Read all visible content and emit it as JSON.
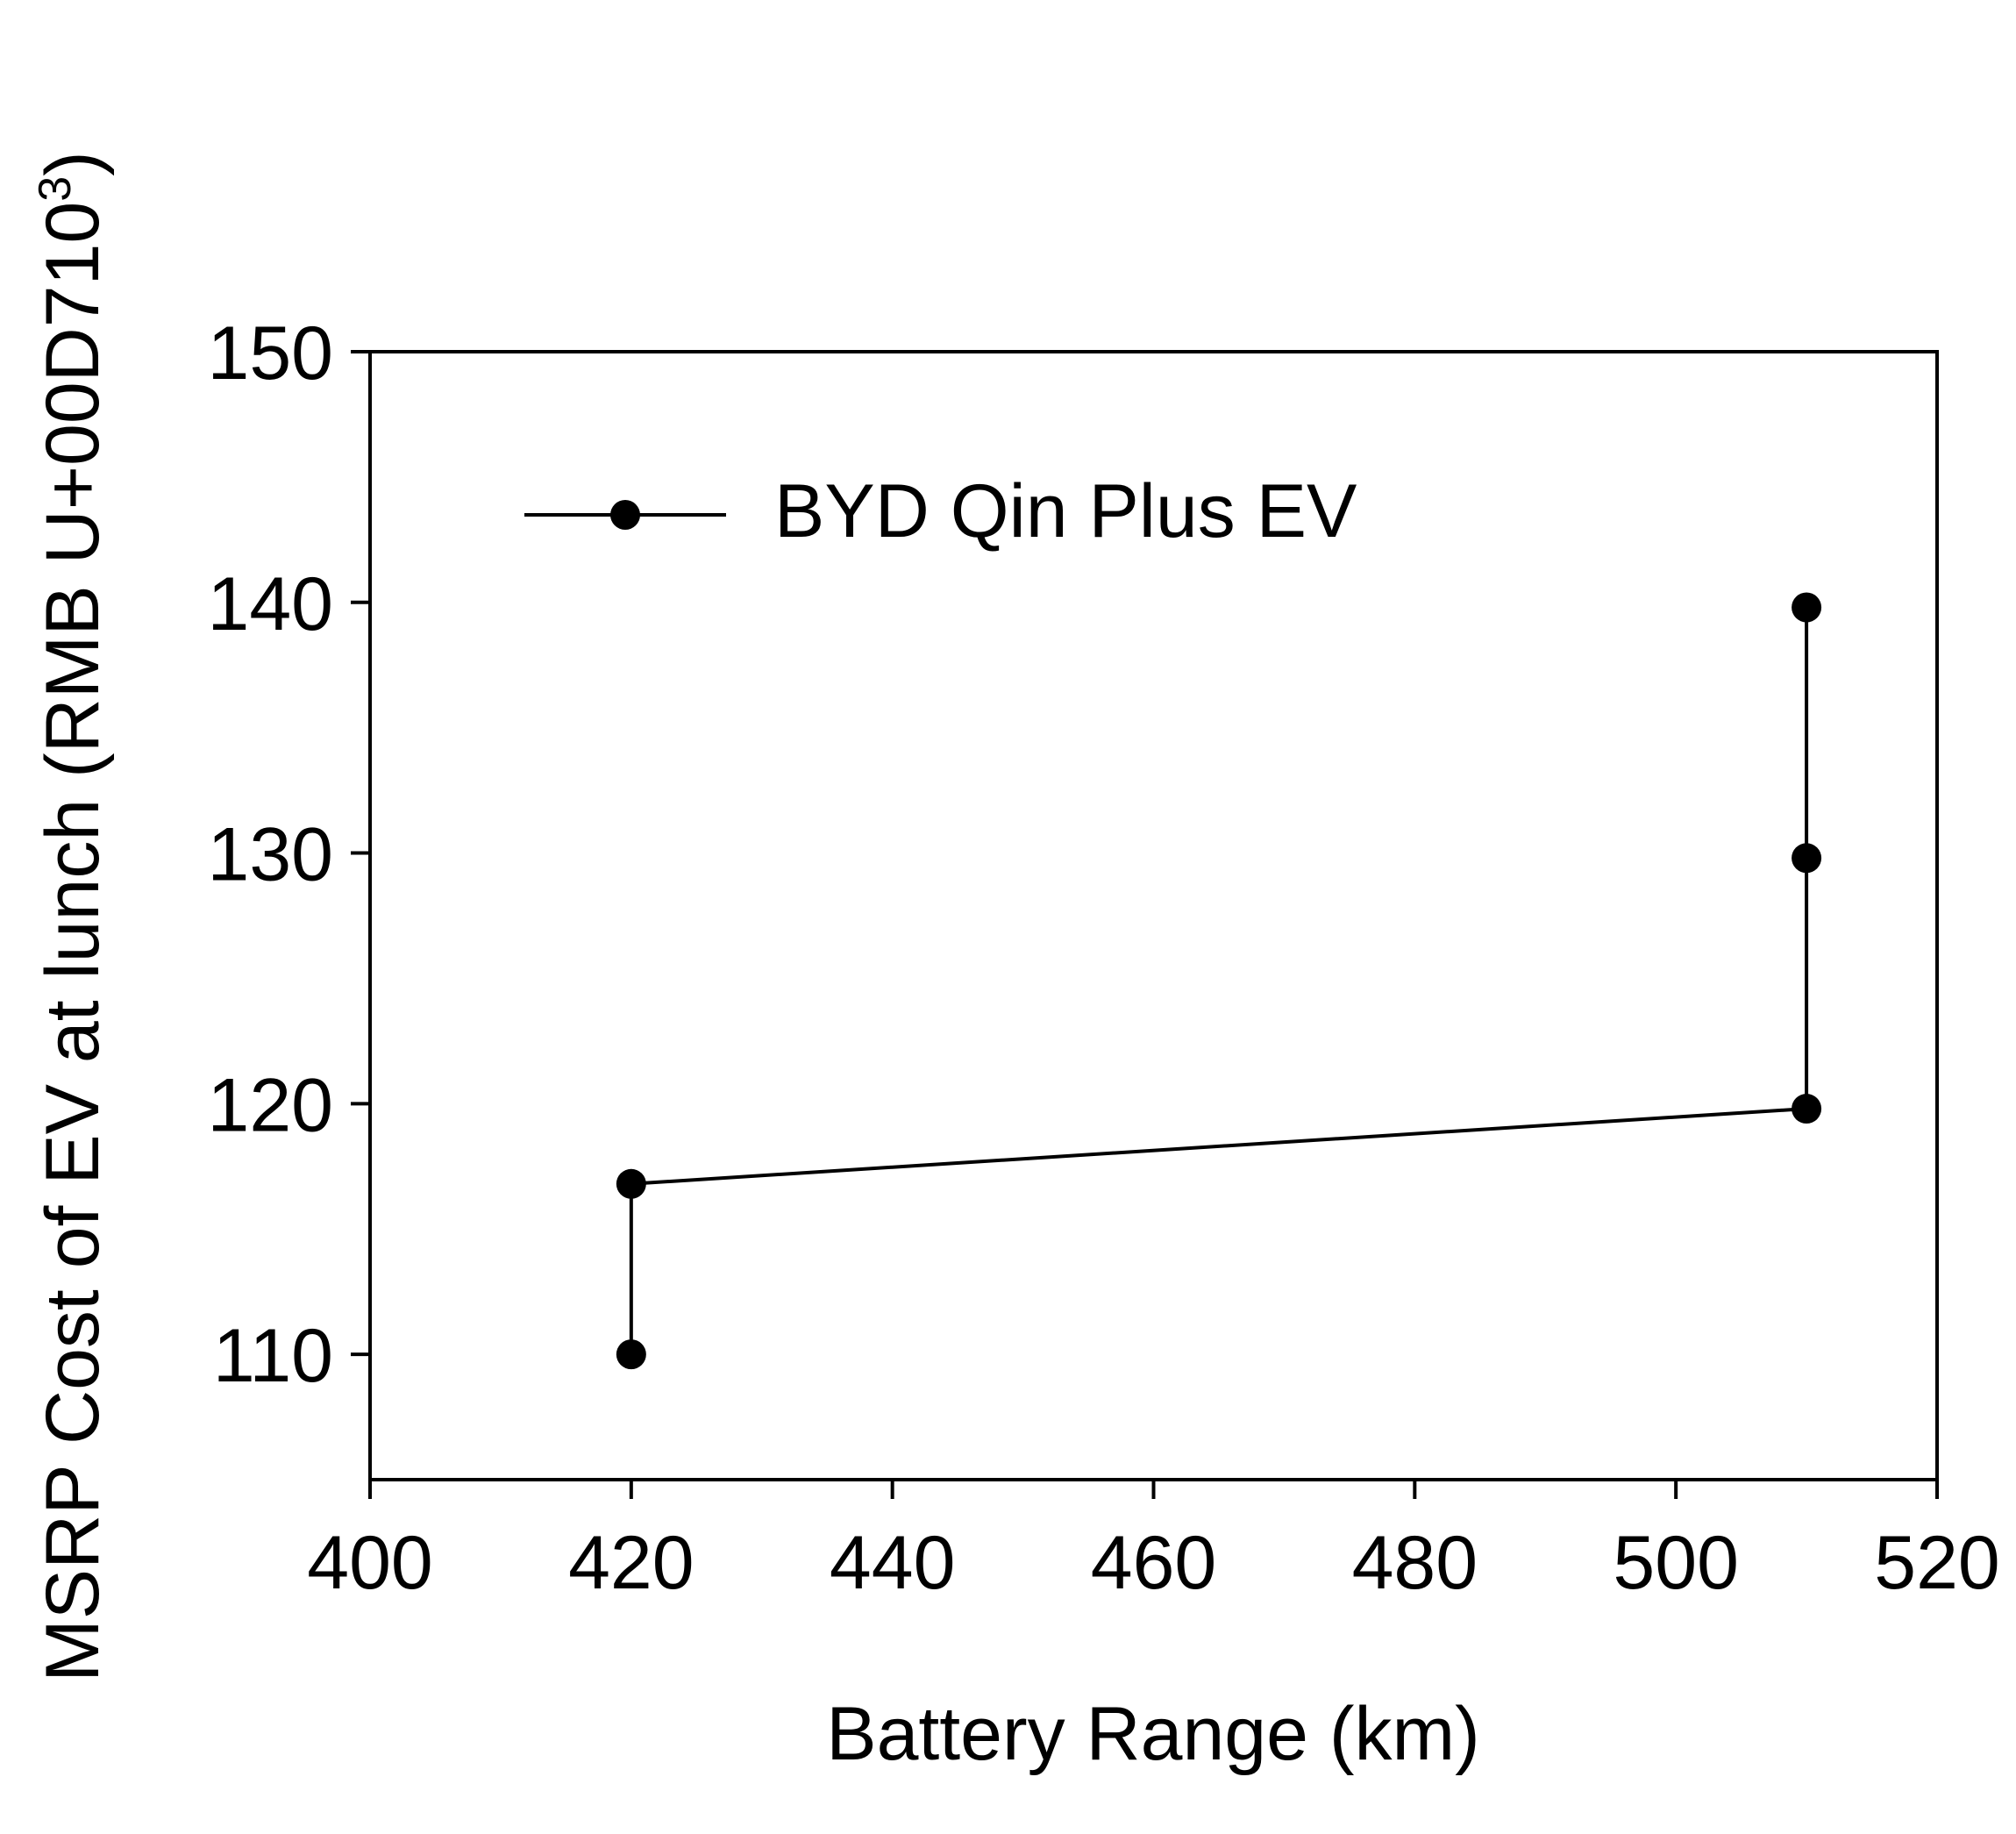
{
  "chart_data": {
    "type": "line",
    "title": "",
    "xlabel": "Battery Range (km)",
    "ylabel": "MSRP Cost of EV at lunch (RMB U+00D710",
    "ylabel_superscript": "3",
    "ylabel_close": ")",
    "xlim": [
      400,
      520
    ],
    "ylim": [
      105,
      150
    ],
    "xticks": [
      400,
      420,
      440,
      460,
      480,
      500,
      520
    ],
    "yticks": [
      110,
      120,
      130,
      140,
      150
    ],
    "legend_position": "top-left",
    "grid": false,
    "series": [
      {
        "name": "BYD Qin Plus EV",
        "color": "#000000",
        "marker": "circle",
        "x": [
          420,
          420,
          510,
          510,
          510
        ],
        "y": [
          110,
          116.8,
          119.8,
          129.8,
          139.8
        ]
      }
    ]
  }
}
